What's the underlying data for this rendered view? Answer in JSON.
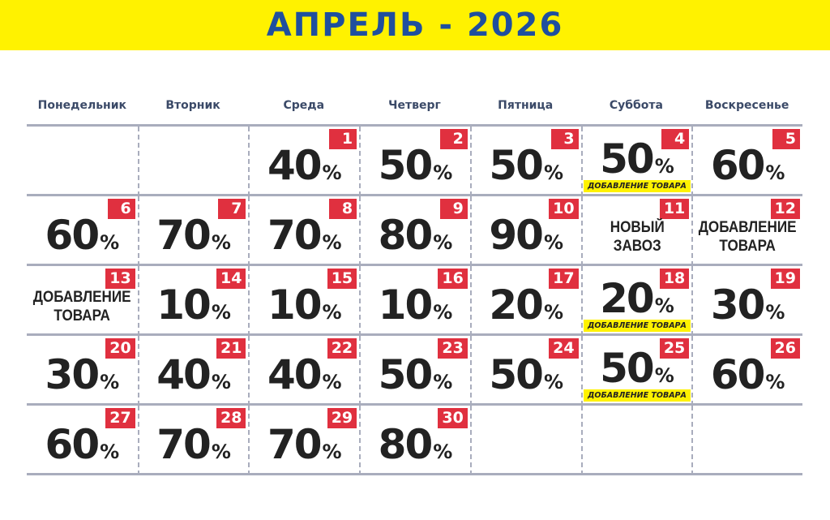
{
  "title": "АПРЕЛЬ - 2026",
  "colors": {
    "header_bg": "#fff200",
    "title": "#1f4f9e",
    "badge": "#e0303f",
    "tag_bg": "#fff200"
  },
  "weekdays": [
    "Понедельник",
    "Вторник",
    "Среда",
    "Четверг",
    "Пятница",
    "Суббота",
    "Воскресенье"
  ],
  "percent_sign": "%",
  "cells": [
    {},
    {},
    {
      "day": "1",
      "value": "40"
    },
    {
      "day": "2",
      "value": "50"
    },
    {
      "day": "3",
      "value": "50"
    },
    {
      "day": "4",
      "value": "50",
      "tag": "ДОБАВЛЕНИЕ ТОВАРА"
    },
    {
      "day": "5",
      "value": "60"
    },
    {
      "day": "6",
      "value": "60"
    },
    {
      "day": "7",
      "value": "70"
    },
    {
      "day": "8",
      "value": "70"
    },
    {
      "day": "9",
      "value": "80"
    },
    {
      "day": "10",
      "value": "90"
    },
    {
      "day": "11",
      "text": [
        "НОВЫЙ",
        "ЗАВОЗ"
      ]
    },
    {
      "day": "12",
      "text": [
        "ДОБАВЛЕНИЕ",
        "ТОВАРА"
      ]
    },
    {
      "day": "13",
      "text": [
        "ДОБАВЛЕНИЕ",
        "ТОВАРА"
      ]
    },
    {
      "day": "14",
      "value": "10"
    },
    {
      "day": "15",
      "value": "10"
    },
    {
      "day": "16",
      "value": "10"
    },
    {
      "day": "17",
      "value": "20"
    },
    {
      "day": "18",
      "value": "20",
      "tag": "ДОБАВЛЕНИЕ ТОВАРА"
    },
    {
      "day": "19",
      "value": "30"
    },
    {
      "day": "20",
      "value": "30"
    },
    {
      "day": "21",
      "value": "40"
    },
    {
      "day": "22",
      "value": "40"
    },
    {
      "day": "23",
      "value": "50"
    },
    {
      "day": "24",
      "value": "50"
    },
    {
      "day": "25",
      "value": "50",
      "tag": "ДОБАВЛЕНИЕ ТОВАРА"
    },
    {
      "day": "26",
      "value": "60"
    },
    {
      "day": "27",
      "value": "60"
    },
    {
      "day": "28",
      "value": "70"
    },
    {
      "day": "29",
      "value": "70"
    },
    {
      "day": "30",
      "value": "80"
    },
    {},
    {},
    {}
  ]
}
